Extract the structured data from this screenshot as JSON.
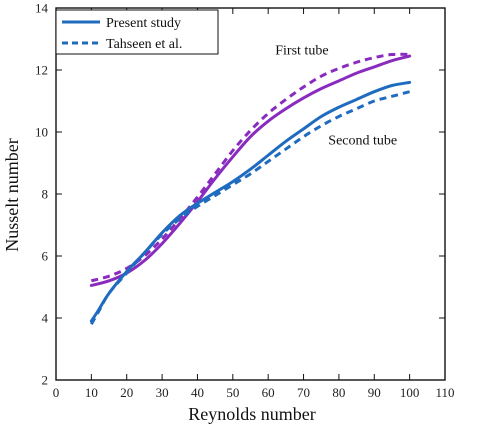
{
  "chart_data": {
    "type": "line",
    "title": "",
    "xlabel": "Reynolds number",
    "ylabel": "Nusselt number",
    "xlim": [
      0,
      110
    ],
    "ylim": [
      2,
      14
    ],
    "xticks": [
      0,
      10,
      20,
      30,
      40,
      50,
      60,
      70,
      80,
      90,
      100,
      110
    ],
    "yticks": [
      2,
      4,
      6,
      8,
      10,
      12,
      14
    ],
    "grid": false,
    "legend_position": "top-left",
    "legend": [
      {
        "label": "Present study",
        "style": "solid"
      },
      {
        "label": "Tahseen et al.",
        "style": "dashed"
      }
    ],
    "annotations": [
      {
        "text": "First tube",
        "x": 62,
        "y": 12.5
      },
      {
        "text": "Second tube",
        "x": 77,
        "y": 9.6
      }
    ],
    "series": [
      {
        "group": "First tube",
        "style": "solid",
        "color": "#8a2bbf",
        "x": [
          10,
          15,
          20,
          25,
          30,
          35,
          40,
          45,
          50,
          55,
          60,
          65,
          70,
          75,
          80,
          85,
          90,
          95,
          100
        ],
        "y": [
          5.05,
          5.2,
          5.45,
          5.85,
          6.4,
          7.05,
          7.75,
          8.5,
          9.2,
          9.85,
          10.35,
          10.75,
          11.1,
          11.4,
          11.65,
          11.9,
          12.1,
          12.3,
          12.45
        ]
      },
      {
        "group": "First tube",
        "style": "dashed",
        "color": "#8a2bbf",
        "x": [
          10,
          15,
          20,
          25,
          30,
          35,
          40,
          45,
          50,
          55,
          60,
          65,
          70,
          75,
          80,
          85,
          90,
          95,
          100
        ],
        "y": [
          5.2,
          5.35,
          5.6,
          6.0,
          6.55,
          7.2,
          7.9,
          8.65,
          9.4,
          10.05,
          10.6,
          11.05,
          11.45,
          11.8,
          12.05,
          12.25,
          12.4,
          12.5,
          12.5
        ]
      },
      {
        "group": "Second tube",
        "style": "solid",
        "color": "#1f6bbf",
        "x": [
          10,
          12,
          15,
          20,
          25,
          30,
          35,
          40,
          45,
          50,
          55,
          60,
          65,
          70,
          75,
          80,
          85,
          90,
          95,
          100
        ],
        "y": [
          3.9,
          4.25,
          4.8,
          5.5,
          6.1,
          6.75,
          7.3,
          7.7,
          8.05,
          8.4,
          8.8,
          9.25,
          9.7,
          10.1,
          10.5,
          10.8,
          11.05,
          11.3,
          11.5,
          11.6
        ]
      },
      {
        "group": "Second tube",
        "style": "dashed",
        "color": "#1f6bbf",
        "x": [
          10,
          12,
          15,
          20,
          25,
          30,
          35,
          40,
          45,
          50,
          55,
          60,
          65,
          70,
          75,
          80,
          85,
          90,
          95,
          100
        ],
        "y": [
          3.8,
          4.2,
          4.8,
          5.45,
          6.1,
          6.7,
          7.2,
          7.6,
          7.95,
          8.3,
          8.65,
          9.05,
          9.45,
          9.85,
          10.2,
          10.5,
          10.75,
          11.0,
          11.15,
          11.3
        ]
      }
    ]
  }
}
